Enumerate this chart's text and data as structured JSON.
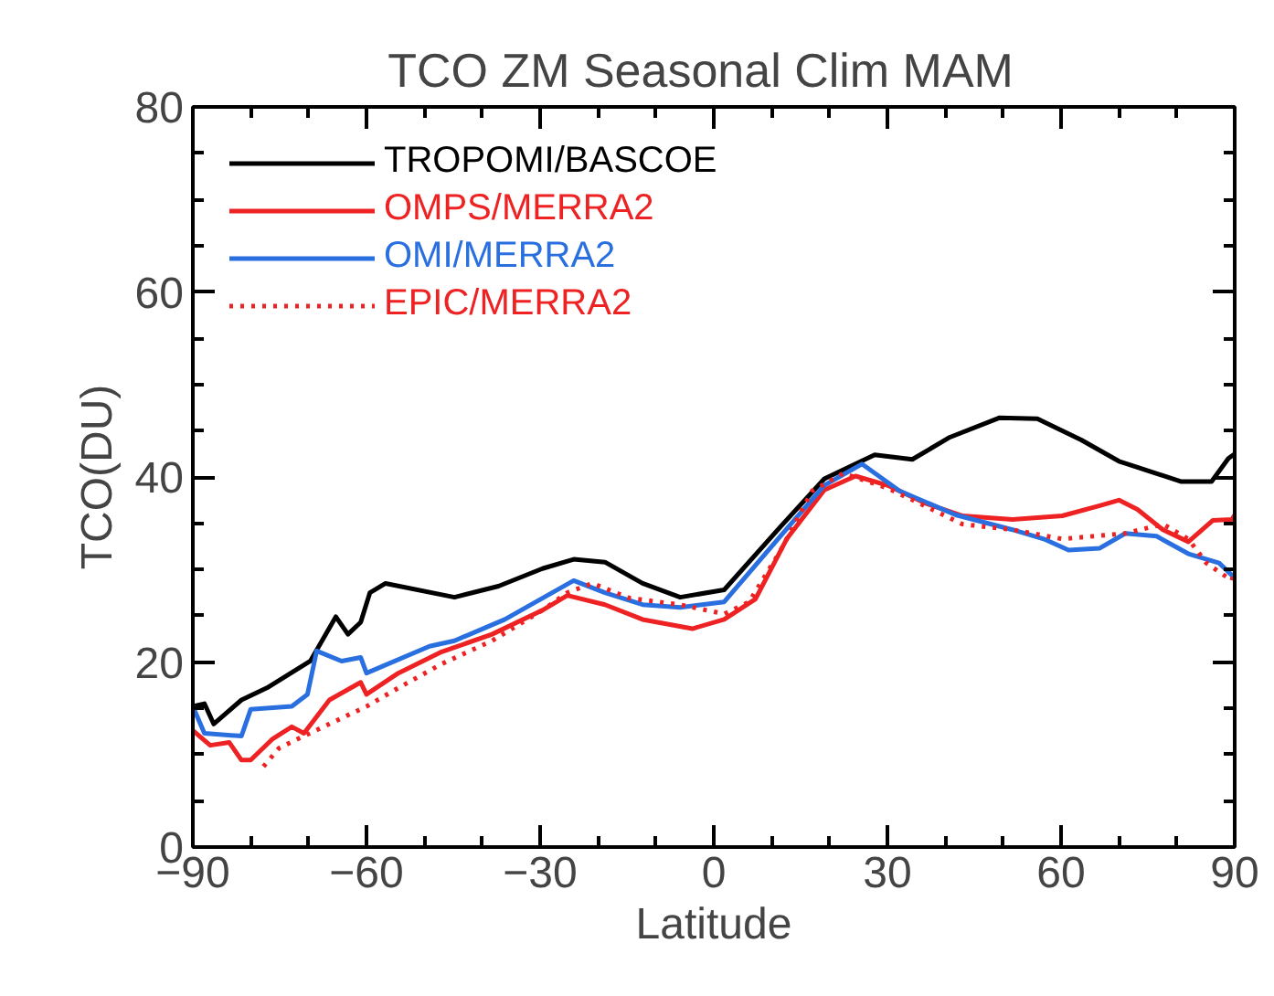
{
  "chart_data": {
    "type": "line",
    "title": "TCO ZM Seasonal Clim   MAM",
    "xlabel": "Latitude",
    "ylabel": "TCO(DU)",
    "xlim": [
      -90,
      90
    ],
    "xticks": [
      -90,
      -60,
      -30,
      0,
      30,
      60,
      90
    ],
    "ylim": [
      0,
      80
    ],
    "yticks": [
      0,
      20,
      40,
      60,
      80
    ],
    "grid": false,
    "legend": "top left",
    "line_style": "solid",
    "series": [
      {
        "name": "TROPOMI/BASCOE",
        "color": "#000000",
        "x": [
          -90,
          -88,
          -86.4,
          -81.6,
          -77.2,
          -69.7,
          -65.3,
          -63.2,
          -61,
          -59.4,
          -56.7,
          -44.8,
          -37.2,
          -29.6,
          -24.2,
          -18.8,
          -12.3,
          -5.8,
          1.8,
          11.5,
          19.1,
          27.8,
          34.3,
          40.8,
          49.4,
          55.9,
          63.5,
          70,
          80.8,
          86,
          88.9,
          90
        ],
        "values": [
          15.2,
          15.5,
          13.3,
          15.9,
          17.2,
          20.1,
          24.9,
          23,
          24.3,
          27.5,
          28.5,
          27,
          28.2,
          30.1,
          31.1,
          30.8,
          28.5,
          27,
          27.8,
          34.6,
          39.8,
          42.4,
          41.9,
          44.3,
          46.4,
          46.3,
          44,
          41.7,
          39.5,
          39.5,
          42,
          42.5
        ]
      },
      {
        "name": "OMPS/MERRA2",
        "color": "#ee2222",
        "x": [
          -90,
          -87,
          -83.7,
          -81.6,
          -80,
          -76.2,
          -72.9,
          -70.8,
          -66.4,
          -61,
          -60,
          -54.5,
          -47,
          -38.3,
          -29.6,
          -25.3,
          -18.8,
          -12.3,
          -3.7,
          1.8,
          7.2,
          12.6,
          19.1,
          24.5,
          30,
          36.4,
          43,
          51.6,
          60.2,
          66.7,
          70,
          73.2,
          77.6,
          82,
          86.2,
          89.5,
          90
        ],
        "values": [
          12.6,
          11,
          11.3,
          9.4,
          9.4,
          11.7,
          13,
          12.3,
          15.9,
          17.8,
          16.5,
          18.8,
          21.1,
          23,
          25.6,
          27.2,
          26.2,
          24.6,
          23.6,
          24.6,
          26.8,
          33.3,
          38.6,
          40.1,
          39.1,
          37.2,
          35.8,
          35.4,
          35.8,
          36.9,
          37.5,
          36.5,
          34.3,
          33,
          35.3,
          35.4,
          35.9
        ]
      },
      {
        "name": "OMI/MERRA2",
        "color": "#2a6fe0",
        "x": [
          -90,
          -88,
          -81.6,
          -80,
          -72.9,
          -70.2,
          -68.6,
          -64.3,
          -61,
          -60,
          -49.1,
          -44.8,
          -36.1,
          -24.2,
          -18.8,
          -12.3,
          -5.8,
          1.8,
          11.5,
          19.1,
          25.6,
          32.1,
          41.8,
          51.6,
          57,
          61.3,
          66.7,
          71.1,
          76.5,
          82,
          87.3,
          90
        ],
        "values": [
          15.2,
          12.3,
          12,
          14.9,
          15.2,
          16.5,
          21.2,
          20.1,
          20.5,
          18.8,
          21.7,
          22.3,
          24.6,
          28.8,
          27.5,
          26.2,
          25.9,
          26.5,
          33.6,
          39.1,
          41.4,
          38.5,
          35.9,
          34.3,
          33.3,
          32.1,
          32.3,
          33.9,
          33.6,
          31.7,
          30.7,
          29.1
        ]
      },
      {
        "name": "EPIC/MERRA2",
        "color": "#ee2222",
        "line_style": "dotted",
        "x": [
          -77.8,
          -75.1,
          -70.8,
          -66.4,
          -60,
          -54.5,
          -47,
          -38.3,
          -29.6,
          -25.3,
          -21,
          -14.5,
          -5.8,
          1.8,
          6.1,
          11.5,
          17,
          22.4,
          30,
          36.4,
          43,
          51.6,
          60.2,
          71.1,
          77.6,
          82,
          85.1,
          89.5,
          90
        ],
        "values": [
          8.7,
          10.7,
          12,
          13.3,
          15.2,
          17.2,
          19.8,
          22.3,
          25.6,
          27.5,
          28.5,
          26.9,
          26.2,
          25.2,
          26.5,
          32,
          38.5,
          40.4,
          38.8,
          36.9,
          34.9,
          34.3,
          33.3,
          33.9,
          34.9,
          33.3,
          30.7,
          28.8,
          30
        ]
      }
    ]
  }
}
